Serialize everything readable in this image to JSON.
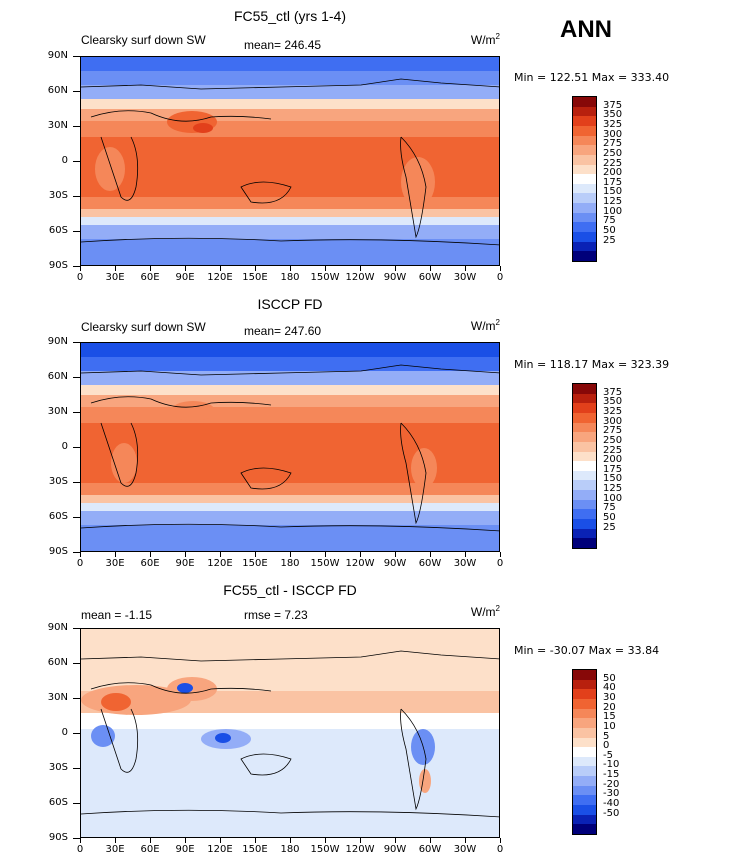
{
  "season_label": "ANN",
  "colors": {
    "abs_scale": [
      "#00007a",
      "#0a22b5",
      "#1a4fe6",
      "#3f6ef2",
      "#6b8ff4",
      "#93adf7",
      "#b9cdf9",
      "#dde9fb",
      "#ffffff",
      "#fde0c9",
      "#fac3a3",
      "#f8a57e",
      "#f58759",
      "#f06432",
      "#e2401b",
      "#b8200e",
      "#870808"
    ],
    "diff_scale": [
      "#00007a",
      "#0a22b5",
      "#1a4fe6",
      "#3f6ef2",
      "#6b8ff4",
      "#93adf7",
      "#b9cdf9",
      "#dde9fb",
      "#ffffff",
      "#fde0c9",
      "#fac3a3",
      "#f8a57e",
      "#f58759",
      "#f06432",
      "#e2401b",
      "#b8200e",
      "#870808"
    ]
  },
  "panels": [
    {
      "title": "FC55_ctl (yrs 1-4)",
      "subtitle_left": "Clearsky surf down SW",
      "subtitle_mid": "mean= 246.45",
      "unit": "W/m",
      "unit_sup": "2",
      "minmax": "Min = 122.51 Max = 333.40",
      "colorbar_labels": [
        "375",
        "350",
        "325",
        "300",
        "275",
        "250",
        "225",
        "200",
        "175",
        "150",
        "125",
        "100",
        "75",
        "50",
        "25"
      ],
      "lat_labels": [
        "90N",
        "60N",
        "30N",
        "0",
        "30S",
        "60S",
        "90S"
      ],
      "lon_labels": [
        "0",
        "30E",
        "60E",
        "90E",
        "120E",
        "150E",
        "180",
        "150W",
        "120W",
        "90W",
        "60W",
        "30W",
        "0"
      ]
    },
    {
      "title": "ISCCP FD",
      "subtitle_left": "Clearsky surf down SW",
      "subtitle_mid": "mean= 247.60",
      "unit": "W/m",
      "unit_sup": "2",
      "minmax": "Min = 118.17 Max = 323.39",
      "colorbar_labels": [
        "375",
        "350",
        "325",
        "300",
        "275",
        "250",
        "225",
        "200",
        "175",
        "150",
        "125",
        "100",
        "75",
        "50",
        "25"
      ],
      "lat_labels": [
        "90N",
        "60N",
        "30N",
        "0",
        "30S",
        "60S",
        "90S"
      ],
      "lon_labels": [
        "0",
        "30E",
        "60E",
        "90E",
        "120E",
        "150E",
        "180",
        "150W",
        "120W",
        "90W",
        "60W",
        "30W",
        "0"
      ]
    },
    {
      "title": "FC55_ctl - ISCCP FD",
      "subtitle_left": "mean =   -1.15",
      "subtitle_mid": "rmse =    7.23",
      "unit": "W/m",
      "unit_sup": "2",
      "minmax": "Min = -30.07 Max =  33.84",
      "colorbar_labels": [
        "50",
        "40",
        "30",
        "20",
        "15",
        "10",
        "5",
        "0",
        "-5",
        "-10",
        "-15",
        "-20",
        "-30",
        "-40",
        "-50"
      ],
      "lat_labels": [
        "90N",
        "60N",
        "30N",
        "0",
        "30S",
        "60S",
        "90S"
      ],
      "lon_labels": [
        "0",
        "30E",
        "60E",
        "90E",
        "120E",
        "150E",
        "180",
        "150W",
        "120W",
        "90W",
        "60W",
        "30W",
        "0"
      ]
    }
  ],
  "chart_data": [
    {
      "type": "heatmap",
      "title": "FC55_ctl (yrs 1-4)",
      "variable": "Clearsky surf down SW",
      "units": "W/m2",
      "mean": 246.45,
      "min": 122.51,
      "max": 333.4,
      "levels": [
        25,
        50,
        75,
        100,
        125,
        150,
        175,
        200,
        225,
        250,
        275,
        300,
        325,
        350,
        375
      ],
      "zonal_profile": {
        "lat": [
          85,
          75,
          65,
          55,
          45,
          35,
          25,
          15,
          5,
          -5,
          -15,
          -25,
          -35,
          -45,
          -55,
          -65,
          -75,
          -85
        ],
        "value": [
          140,
          150,
          165,
          185,
          230,
          270,
          295,
          305,
          300,
          300,
          305,
          295,
          270,
          230,
          185,
          165,
          150,
          160
        ]
      }
    },
    {
      "type": "heatmap",
      "title": "ISCCP FD",
      "variable": "Clearsky surf down SW",
      "units": "W/m2",
      "mean": 247.6,
      "min": 118.17,
      "max": 323.39,
      "levels": [
        25,
        50,
        75,
        100,
        125,
        150,
        175,
        200,
        225,
        250,
        275,
        300,
        325,
        350,
        375
      ],
      "zonal_profile": {
        "lat": [
          85,
          75,
          65,
          55,
          45,
          35,
          25,
          15,
          5,
          -5,
          -15,
          -25,
          -35,
          -45,
          -55,
          -65,
          -75,
          -85
        ],
        "value": [
          130,
          145,
          165,
          190,
          230,
          265,
          285,
          295,
          305,
          305,
          295,
          285,
          265,
          225,
          185,
          165,
          150,
          155
        ]
      }
    },
    {
      "type": "heatmap",
      "title": "FC55_ctl - ISCCP FD",
      "variable": "Clearsky surf down SW",
      "units": "W/m2",
      "mean": -1.15,
      "rmse": 7.23,
      "min": -30.07,
      "max": 33.84,
      "levels": [
        -50,
        -40,
        -30,
        -20,
        -15,
        -10,
        -5,
        0,
        5,
        10,
        15,
        20,
        30,
        40,
        50
      ],
      "zonal_profile": {
        "lat": [
          85,
          75,
          65,
          55,
          45,
          35,
          25,
          15,
          5,
          -5,
          -15,
          -25,
          -35,
          -45,
          -55,
          -65,
          -75,
          -85
        ],
        "value": [
          3,
          2,
          3,
          5,
          5,
          8,
          5,
          2,
          -3,
          -3,
          -2,
          -2,
          0,
          -2,
          -3,
          -1,
          -2,
          -2
        ]
      }
    }
  ]
}
